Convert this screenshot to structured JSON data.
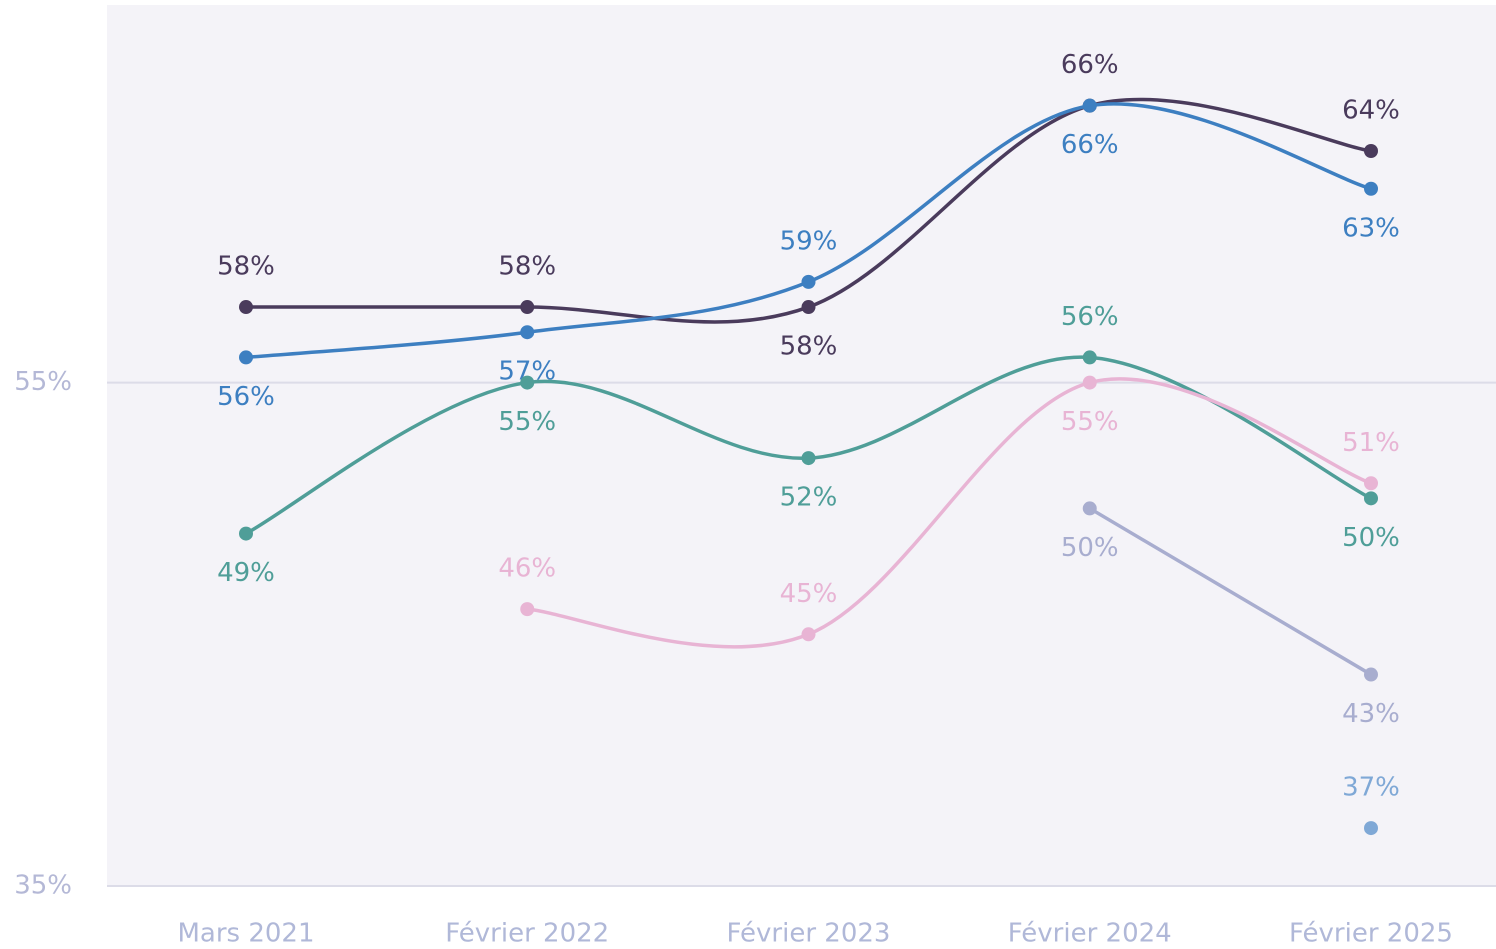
{
  "chart_data": {
    "type": "line",
    "categories": [
      "Mars 2021",
      "Février 2022",
      "Février 2023",
      "Février 2024",
      "Février 2025"
    ],
    "ylim": [
      35,
      70
    ],
    "yticks": [
      {
        "value": 35,
        "label": "35%"
      },
      {
        "value": 55,
        "label": "55%"
      }
    ],
    "grid": true,
    "series": [
      {
        "color": "#4a3b5c",
        "values": [
          58,
          58,
          58,
          66,
          64.2
        ],
        "value_labels": [
          "58%",
          "58%",
          "58%",
          "66%",
          "64%"
        ]
      },
      {
        "color": "#3d7fc1",
        "values": [
          56,
          57,
          59,
          66,
          62.7
        ],
        "value_labels": [
          "56%",
          "57%",
          "59%",
          "66%",
          "63%"
        ]
      },
      {
        "color": "#4f9e98",
        "values": [
          49,
          55,
          52,
          56,
          50.4
        ],
        "value_labels": [
          "49%",
          "55%",
          "52%",
          "56%",
          "50%"
        ]
      },
      {
        "color": "#e8b4d4",
        "values": [
          null,
          46,
          45,
          55,
          51
        ],
        "value_labels": [
          null,
          "46%",
          "45%",
          "55%",
          "51%"
        ]
      },
      {
        "color": "#a8adcf",
        "values": [
          null,
          null,
          null,
          50,
          43.4
        ],
        "value_labels": [
          null,
          null,
          null,
          "50%",
          "43%"
        ]
      },
      {
        "color": "#7fa8d6",
        "values": [
          null,
          null,
          null,
          null,
          37.3
        ],
        "value_labels": [
          null,
          null,
          null,
          null,
          "37%"
        ]
      }
    ]
  }
}
